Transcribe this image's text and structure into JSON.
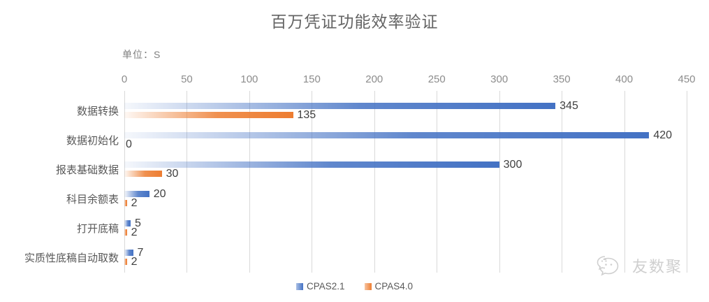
{
  "title": "百万凭证功能效率验证",
  "unit_label": "单位：S",
  "watermark": {
    "brand": "友数聚",
    "icon": "wechat-icon"
  },
  "colors": {
    "series_blue": "#4472c4",
    "series_orange": "#ed7d31",
    "gridline": "#d9d9d9",
    "title_text": "#646464",
    "axis_text": "#8c8c8c",
    "category_text": "#595959",
    "data_label_text": "#3f3f3f",
    "watermark_gray": "#cfcfcf"
  },
  "legend": [
    {
      "label": "CPAS2.1",
      "color": "#4472c4"
    },
    {
      "label": "CPAS4.0",
      "color": "#ed7d31"
    }
  ],
  "chart_data": {
    "type": "bar",
    "orientation": "horizontal",
    "title": "百万凭证功能效率验证",
    "xlabel": "",
    "ylabel": "单位：S",
    "xlim": [
      0,
      450
    ],
    "xticks": [
      0,
      50,
      100,
      150,
      200,
      250,
      300,
      350,
      400,
      450
    ],
    "grid": true,
    "legend_position": "bottom",
    "categories": [
      "数据转换",
      "数据初始化",
      "报表基础数据",
      "科目余额表",
      "打开底稿",
      "实质性底稿自动取数"
    ],
    "series": [
      {
        "name": "CPAS2.1",
        "color": "#4472c4",
        "values": [
          345,
          420,
          300,
          20,
          5,
          7
        ]
      },
      {
        "name": "CPAS4.0",
        "color": "#ed7d31",
        "values": [
          135,
          0,
          30,
          2,
          2,
          2
        ]
      }
    ]
  }
}
